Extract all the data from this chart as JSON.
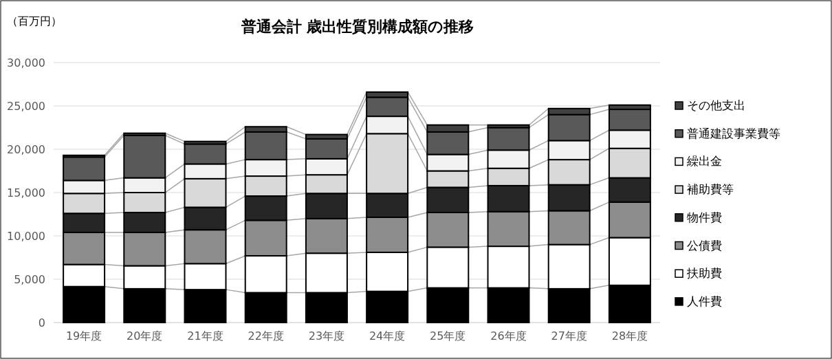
{
  "chart_data": {
    "type": "bar",
    "stacked": true,
    "title": "普通会計 歳出性質別構成額の推移",
    "ylabel": "（百万円）",
    "categories": [
      "19年度",
      "20年度",
      "21年度",
      "22年度",
      "23年度",
      "24年度",
      "25年度",
      "26年度",
      "27年度",
      "28年度"
    ],
    "series": [
      {
        "name": "人件費",
        "color": "#000000",
        "values": [
          4150,
          3900,
          3800,
          3450,
          3450,
          3600,
          4000,
          4000,
          3900,
          4300
        ]
      },
      {
        "name": "扶助費",
        "color": "#ffffff",
        "values": [
          2550,
          2650,
          3000,
          4250,
          4550,
          4500,
          4700,
          4800,
          5100,
          5500
        ]
      },
      {
        "name": "公債費",
        "color": "#8c8c8c",
        "values": [
          3700,
          3850,
          3900,
          4100,
          4000,
          4050,
          4000,
          4000,
          3900,
          4100
        ]
      },
      {
        "name": "物件費",
        "color": "#262626",
        "values": [
          2200,
          2300,
          2600,
          2800,
          2900,
          2750,
          2900,
          3000,
          3000,
          2800
        ]
      },
      {
        "name": "補助費等",
        "color": "#d9d9d9",
        "values": [
          2300,
          2300,
          3300,
          2300,
          2150,
          6900,
          1900,
          2000,
          2900,
          3400
        ]
      },
      {
        "name": "繰出金",
        "color": "#f2f2f2",
        "values": [
          1500,
          1700,
          1700,
          1900,
          1850,
          2000,
          1900,
          2100,
          2200,
          2100
        ]
      },
      {
        "name": "普通建設事業費等",
        "color": "#595959",
        "values": [
          2700,
          4900,
          2300,
          3200,
          2300,
          2200,
          2600,
          2600,
          3000,
          2400
        ]
      },
      {
        "name": "その他支出",
        "color": "#404040",
        "values": [
          200,
          250,
          300,
          600,
          500,
          600,
          800,
          300,
          700,
          500
        ]
      }
    ],
    "ylim": [
      0,
      30000
    ],
    "yticks": [
      {
        "value": 0,
        "label": "0"
      },
      {
        "value": 5000,
        "label": "5,000"
      },
      {
        "value": 10000,
        "label": "10,000"
      },
      {
        "value": 15000,
        "label": "15,000"
      },
      {
        "value": 20000,
        "label": "20,000"
      },
      {
        "value": 25000,
        "label": "25,000"
      },
      {
        "value": 30000,
        "label": "30,000"
      }
    ],
    "grid": "y",
    "legend": "right"
  }
}
